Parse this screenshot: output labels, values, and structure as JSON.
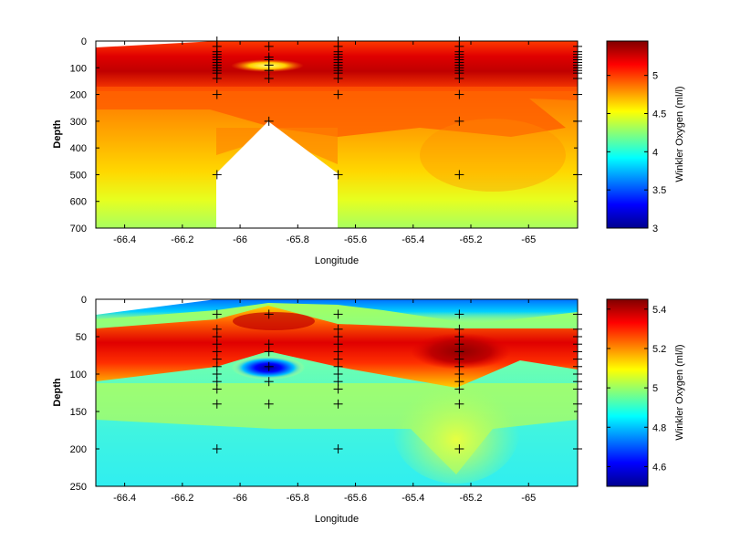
{
  "chart_data": [
    {
      "type": "heatmap",
      "xlabel": "Longitude",
      "ylabel": "Depth",
      "xlim": [
        -66.5,
        -64.83
      ],
      "ylim": [
        0,
        700
      ],
      "y_reversed": true,
      "xticks": [
        -66.4,
        -66.2,
        -66,
        -65.8,
        -65.6,
        -65.4,
        -65.2,
        -65
      ],
      "yticks": [
        0,
        100,
        200,
        300,
        400,
        500,
        600,
        700
      ],
      "colorbar": {
        "label": "Winkler Oxygen (ml/l)",
        "range": [
          3,
          5.45
        ],
        "ticks": [
          3,
          3.5,
          4,
          4.5,
          5
        ]
      },
      "stations": [
        {
          "lon": -66.5,
          "depths": []
        },
        {
          "lon": -66.08,
          "depths": [
            0,
            20,
            40,
            50,
            60,
            70,
            80,
            90,
            100,
            110,
            120,
            140,
            200,
            500
          ]
        },
        {
          "lon": -65.9,
          "depths": [
            20,
            60,
            70,
            90,
            110,
            140,
            300
          ]
        },
        {
          "lon": -65.66,
          "depths": [
            0,
            20,
            40,
            50,
            60,
            70,
            80,
            90,
            100,
            110,
            120,
            140,
            200,
            500
          ]
        },
        {
          "lon": -65.24,
          "depths": [
            0,
            20,
            40,
            50,
            60,
            70,
            80,
            90,
            100,
            110,
            120,
            140,
            200,
            300,
            500
          ]
        },
        {
          "lon": -64.83,
          "depths": [
            20,
            40,
            50,
            60,
            70,
            80,
            90,
            100,
            110,
            120,
            140,
            200,
            300,
            500
          ]
        }
      ]
    },
    {
      "type": "heatmap",
      "xlabel": "Longitude",
      "ylabel": "Depth",
      "xlim": [
        -66.5,
        -64.83
      ],
      "ylim": [
        0,
        250
      ],
      "y_reversed": true,
      "xticks": [
        -66.4,
        -66.2,
        -66,
        -65.8,
        -65.6,
        -65.4,
        -65.2,
        -65
      ],
      "yticks": [
        0,
        50,
        100,
        150,
        200,
        250
      ],
      "colorbar": {
        "label": "Winkler Oxygen (ml/l)",
        "range": [
          4.5,
          5.45
        ],
        "ticks": [
          4.6,
          4.8,
          5,
          5.2,
          5.4
        ]
      },
      "stations": [
        {
          "lon": -66.08,
          "depths": [
            20,
            40,
            50,
            60,
            70,
            80,
            90,
            100,
            110,
            120,
            140,
            200
          ]
        },
        {
          "lon": -65.9,
          "depths": [
            20,
            60,
            70,
            90,
            110,
            140
          ]
        },
        {
          "lon": -65.66,
          "depths": [
            20,
            40,
            50,
            60,
            70,
            80,
            90,
            100,
            110,
            120,
            140,
            200
          ]
        },
        {
          "lon": -65.24,
          "depths": [
            20,
            40,
            50,
            60,
            70,
            80,
            90,
            100,
            110,
            120,
            140,
            200
          ]
        },
        {
          "lon": -64.83,
          "depths": [
            20,
            40,
            50,
            60,
            70,
            80,
            90,
            100,
            110,
            120,
            140,
            200
          ]
        }
      ]
    }
  ]
}
